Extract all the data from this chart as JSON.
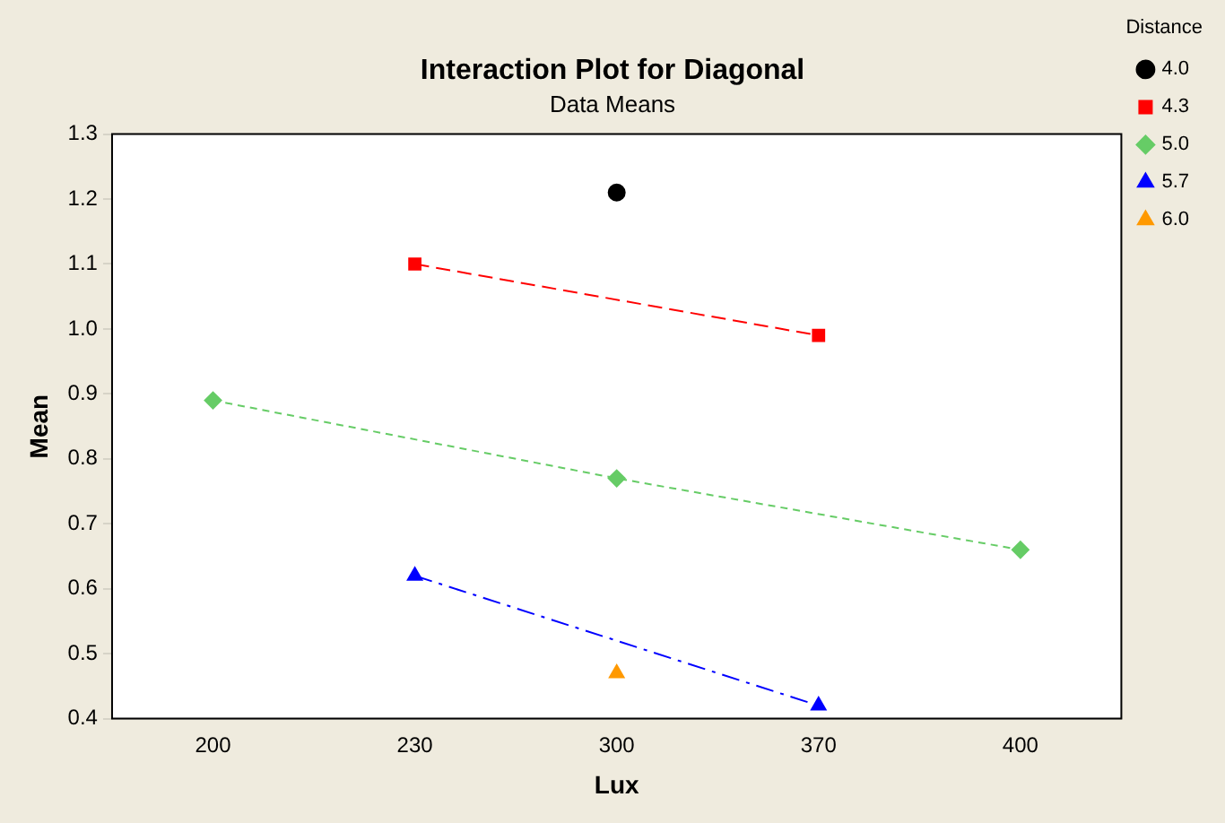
{
  "chart_data": {
    "type": "line",
    "title": "Interaction Plot for Diagonal",
    "subtitle": "Data Means",
    "xlabel": "Lux",
    "ylabel": "Mean",
    "legend_title": "Distance",
    "legend": "right",
    "categories": [
      "200",
      "230",
      "300",
      "370",
      "400"
    ],
    "ylim": [
      0.4,
      1.3
    ],
    "yticks": [
      0.4,
      0.5,
      0.6,
      0.7,
      0.8,
      0.9,
      {
        "value": 1.0,
        "label": "1.0"
      },
      1.1,
      1.2,
      1.3
    ],
    "grid": false,
    "series": [
      {
        "name": "4.0",
        "color": "#000000",
        "marker": "circle",
        "line_style": "solid",
        "values": [
          null,
          null,
          1.21,
          null,
          null
        ]
      },
      {
        "name": "4.3",
        "color": "#ff0000",
        "marker": "square",
        "line_style": "dashed",
        "values": [
          null,
          1.1,
          null,
          0.99,
          null
        ]
      },
      {
        "name": "5.0",
        "color": "#66cc66",
        "marker": "diamond",
        "line_style": "dotted",
        "values": [
          0.89,
          null,
          0.77,
          null,
          0.66
        ]
      },
      {
        "name": "5.7",
        "color": "#0000ff",
        "marker": "triangle",
        "line_style": "dashdot",
        "values": [
          null,
          0.62,
          null,
          0.42,
          null
        ]
      },
      {
        "name": "6.0",
        "color": "#ff9900",
        "marker": "triangle",
        "line_style": "dashed",
        "values": [
          null,
          null,
          0.47,
          null,
          null
        ]
      }
    ]
  }
}
